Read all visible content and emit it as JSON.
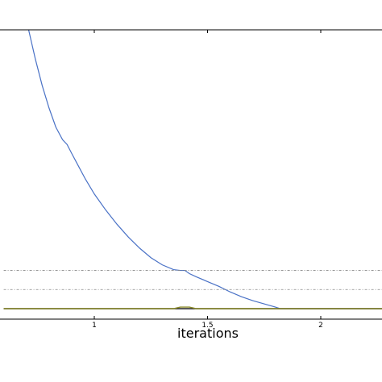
{
  "chart_data": {
    "type": "line",
    "xlabel": "iterations",
    "ylabel": "",
    "title": "",
    "xlim": [
      0.6,
      2.3
    ],
    "ylim": [
      -0.2,
      3.5
    ],
    "x_ticks": [
      1,
      1.5,
      2
    ],
    "x_tick_labels": [
      "1",
      "1.5",
      "2"
    ],
    "grid": false,
    "series": [
      {
        "color": "#4a72c6",
        "style": "solid",
        "x": [
          0.71,
          0.74,
          0.77,
          0.8,
          0.83,
          0.86,
          0.88,
          0.9,
          0.93,
          0.96,
          1.0,
          1.05,
          1.1,
          1.15,
          1.2,
          1.25,
          1.3,
          1.35,
          1.38,
          1.4,
          1.42,
          1.45,
          1.5,
          1.55,
          1.6,
          1.65,
          1.7,
          1.75,
          1.8,
          1.82,
          1.85,
          2.0,
          2.3
        ],
        "y": [
          3.5,
          3.13,
          2.8,
          2.52,
          2.28,
          2.12,
          2.06,
          1.95,
          1.79,
          1.63,
          1.44,
          1.24,
          1.06,
          0.9,
          0.76,
          0.64,
          0.55,
          0.49,
          0.48,
          0.48,
          0.44,
          0.4,
          0.34,
          0.28,
          0.21,
          0.15,
          0.1,
          0.06,
          0.02,
          0.0,
          0.0,
          0.0,
          0.0
        ]
      },
      {
        "color": "#202020",
        "style": "solid",
        "x": [
          0.6,
          2.3
        ],
        "y": [
          0.0,
          0.0
        ]
      },
      {
        "color": "#8a8a2a",
        "style": "solid",
        "x": [
          0.6,
          1.35,
          1.38,
          1.42,
          1.45,
          2.3
        ],
        "y": [
          0.0,
          0.0,
          0.02,
          0.02,
          0.0,
          0.0
        ]
      },
      {
        "color": "#888888",
        "style": "dashdot",
        "x": [
          0.6,
          2.3
        ],
        "y": [
          0.48,
          0.48
        ]
      },
      {
        "color": "#888888",
        "style": "dashdot",
        "x": [
          0.6,
          2.3
        ],
        "y": [
          0.24,
          0.24
        ]
      }
    ]
  }
}
